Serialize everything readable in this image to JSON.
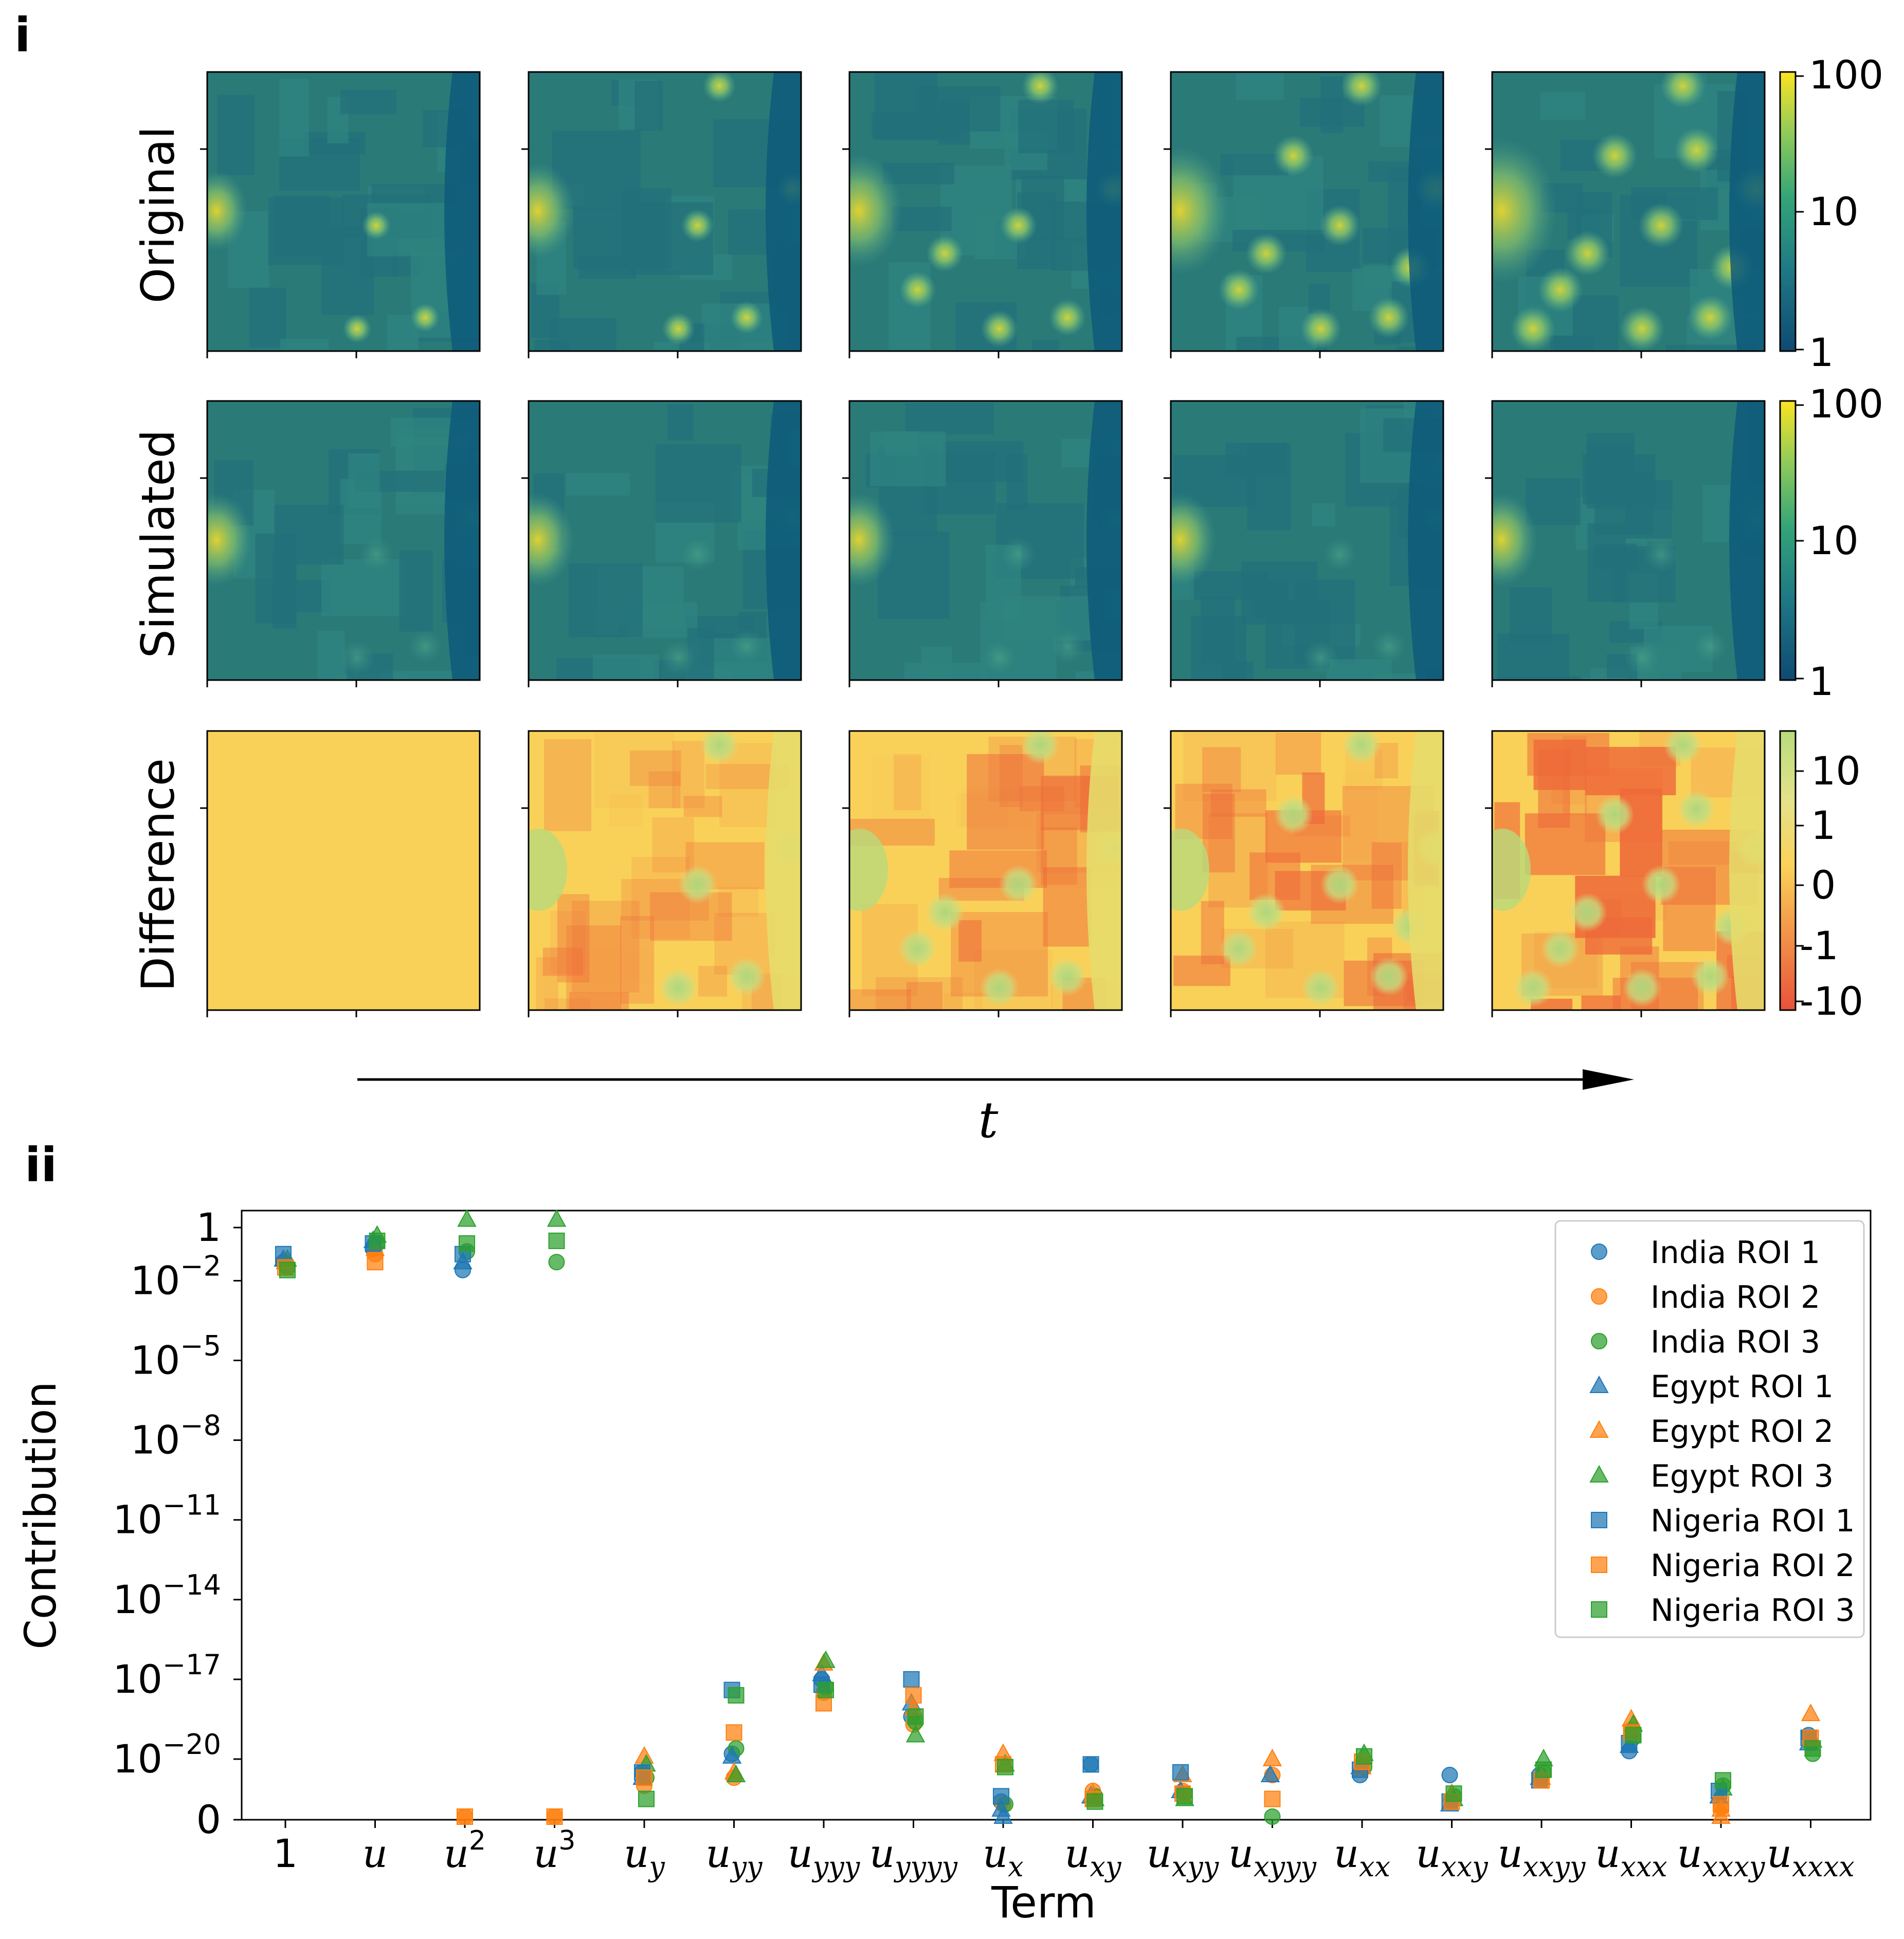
{
  "panel_i": {
    "label": "i",
    "row_labels": [
      "Original",
      "Simulated",
      "Difference"
    ],
    "colorbar_main_ticks": [
      "100",
      "10",
      "1"
    ],
    "colorbar_diff_ticks": [
      "10",
      "1",
      "0",
      "-1",
      "-10"
    ],
    "colors": {
      "viridis_low": "#0d5a7a",
      "viridis_mid": "#2a7a78",
      "viridis_bright": "#8fc76a",
      "viridis_top": "#f6dc2a",
      "diff_base": "#f9d159",
      "diff_low": "#ee6a3a",
      "diff_high": "#b8d97a"
    },
    "time_axis_label": "t"
  },
  "chart_data": {
    "type": "scatter",
    "panel_label": "ii",
    "xlabel": "Term",
    "ylabel": "Contribution",
    "yscale": "symlog",
    "ylim": [
      0,
      10
    ],
    "categories": [
      {
        "base": "1",
        "sub": "",
        "sup": ""
      },
      {
        "base": "u",
        "sub": "",
        "sup": ""
      },
      {
        "base": "u",
        "sub": "",
        "sup": "2"
      },
      {
        "base": "u",
        "sub": "",
        "sup": "3"
      },
      {
        "base": "u",
        "sub": "y",
        "sup": ""
      },
      {
        "base": "u",
        "sub": "yy",
        "sup": ""
      },
      {
        "base": "u",
        "sub": "yyy",
        "sup": ""
      },
      {
        "base": "u",
        "sub": "yyyy",
        "sup": ""
      },
      {
        "base": "u",
        "sub": "x",
        "sup": ""
      },
      {
        "base": "u",
        "sub": "xy",
        "sup": ""
      },
      {
        "base": "u",
        "sub": "xyy",
        "sup": ""
      },
      {
        "base": "u",
        "sub": "xyyy",
        "sup": ""
      },
      {
        "base": "u",
        "sub": "xx",
        "sup": ""
      },
      {
        "base": "u",
        "sub": "xxy",
        "sup": ""
      },
      {
        "base": "u",
        "sub": "xxyy",
        "sup": ""
      },
      {
        "base": "u",
        "sub": "xxx",
        "sup": ""
      },
      {
        "base": "u",
        "sub": "xxxy",
        "sup": ""
      },
      {
        "base": "u",
        "sub": "xxxx",
        "sup": ""
      }
    ],
    "y_ticks": [
      {
        "base": "1",
        "exp": ""
      },
      {
        "base": "10",
        "exp": "−2"
      },
      {
        "base": "10",
        "exp": "−5"
      },
      {
        "base": "10",
        "exp": "−8"
      },
      {
        "base": "10",
        "exp": "−11"
      },
      {
        "base": "10",
        "exp": "−14"
      },
      {
        "base": "10",
        "exp": "−17"
      },
      {
        "base": "10",
        "exp": "−20"
      },
      {
        "base": "0",
        "exp": ""
      }
    ],
    "legend_position": "top-right",
    "series": [
      {
        "name": "India ROI 1",
        "marker": "circle",
        "color": "#1f77b4",
        "log10": [
          -1.3,
          -0.8,
          -1.6,
          null,
          -20.5,
          -19.8,
          -17.0,
          -18.4,
          -21.6,
          -20.2,
          null,
          null,
          -20.6,
          -20.6,
          -20.6,
          -19.7,
          null,
          -19.1
        ]
      },
      {
        "name": "India ROI 2",
        "marker": "circle",
        "color": "#ff7f0e",
        "log10": [
          -1.4,
          -1.0,
          null,
          null,
          -21.0,
          -20.7,
          -17.5,
          -18.7,
          -21.7,
          -21.2,
          -21.2,
          -20.6,
          -20.4,
          -21.6,
          -20.8,
          -18.9,
          -21.8,
          -19.4
        ]
      },
      {
        "name": "India ROI 3",
        "marker": "circle",
        "color": "#2ca02c",
        "log10": [
          -1.5,
          -0.6,
          -0.9,
          -1.3,
          -20.7,
          -19.6,
          -17.3,
          -18.6,
          -21.7,
          -21.4,
          -21.3,
          null,
          -20.3,
          -21.4,
          -20.5,
          -19.2,
          -21.0,
          -19.8
        ]
      },
      {
        "name": "Egypt ROI 1",
        "marker": "triangle",
        "color": "#1f77b4",
        "log10": [
          -1.2,
          -0.5,
          -1.3,
          null,
          -20.7,
          -19.9,
          -16.8,
          -17.9,
          -22.0,
          -21.4,
          -21.2,
          -20.6,
          -20.3,
          -21.7,
          -20.7,
          -19.5,
          -21.4,
          -19.4
        ]
      },
      {
        "name": "Egypt ROI 2",
        "marker": "triangle",
        "color": "#ff7f0e",
        "log10": [
          -1.3,
          -0.8,
          null,
          null,
          -19.9,
          -20.5,
          -16.4,
          -18.1,
          -19.8,
          -21.3,
          -20.6,
          -20.0,
          -20.3,
          -21.3,
          -20.7,
          -18.5,
          -22.0,
          -18.3
        ]
      },
      {
        "name": "Egypt ROI 3",
        "marker": "triangle",
        "color": "#2ca02c",
        "log10": [
          -1.2,
          -0.3,
          0.3,
          0.3,
          -20.2,
          -20.6,
          -16.3,
          -19.1,
          -20.2,
          -21.5,
          -21.5,
          null,
          -19.8,
          -21.5,
          -20.0,
          -18.7,
          -21.1,
          -19.3
        ]
      },
      {
        "name": "Nigeria ROI 1",
        "marker": "square",
        "color": "#1f77b4",
        "log10": [
          -1.0,
          -0.6,
          -1.0,
          null,
          -20.5,
          -17.4,
          -17.2,
          -17.0,
          -21.4,
          -20.2,
          -20.5,
          null,
          -20.4,
          -21.6,
          -20.8,
          -19.4,
          -21.2,
          -19.2
        ]
      },
      {
        "name": "Nigeria ROI 2",
        "marker": "square",
        "color": "#ff7f0e",
        "log10": [
          -1.5,
          -1.3,
          null,
          null,
          -20.7,
          -19.0,
          -17.9,
          -17.6,
          -20.2,
          -21.5,
          -21.3,
          -21.5,
          -20.1,
          -21.6,
          -20.8,
          -19.0,
          -21.7,
          -19.2
        ]
      },
      {
        "name": "Nigeria ROI 3",
        "marker": "square",
        "color": "#2ca02c",
        "log10": [
          -1.6,
          -0.5,
          -0.6,
          -0.5,
          -21.5,
          -17.6,
          -17.4,
          -18.4,
          -20.3,
          -21.6,
          -21.4,
          null,
          -19.9,
          -21.3,
          -20.4,
          -19.1,
          -20.8,
          -19.6
        ]
      }
    ],
    "zero_points": {
      "India ROI 2": [
        2,
        3
      ],
      "Nigeria ROI 2": [
        2,
        3
      ],
      "Egypt ROI 1": [
        8
      ],
      "India ROI 3": [
        11
      ],
      "Egypt ROI 2": [
        16
      ]
    }
  }
}
